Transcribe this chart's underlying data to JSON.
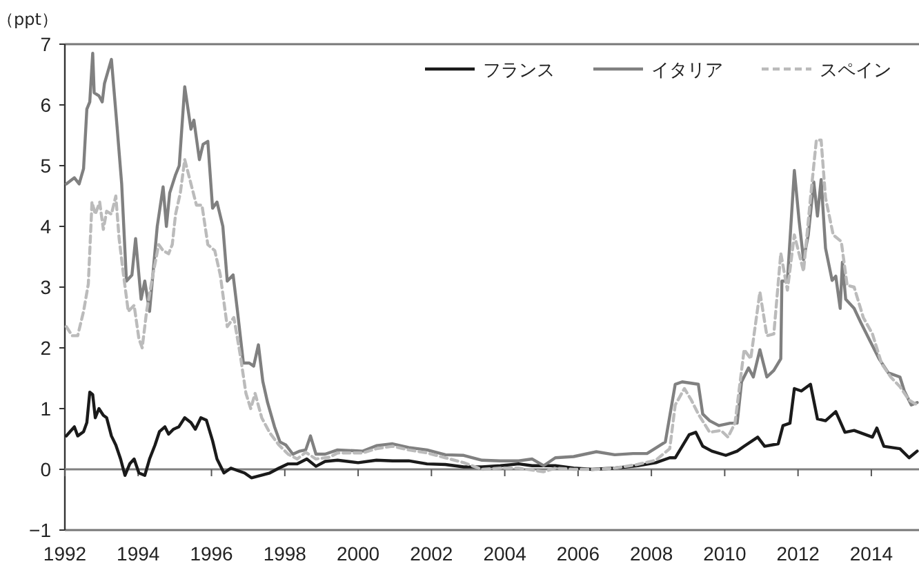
{
  "chart_data": {
    "type": "line",
    "ylabel": "（ppt）",
    "xlim": [
      1992,
      2015.3
    ],
    "ylim": [
      -1,
      7
    ],
    "xticks": [
      1992,
      1994,
      1996,
      1998,
      2000,
      2002,
      2004,
      2006,
      2008,
      2010,
      2012,
      2014
    ],
    "yticks": [
      {
        "value": -1,
        "label": "−1"
      },
      0,
      1,
      2,
      3,
      4,
      5,
      6,
      7
    ],
    "grid": false,
    "legend": "top right",
    "marker": "none",
    "ref_lines": [
      {
        "axis": "y",
        "value": 0,
        "color": "#808080"
      }
    ],
    "series": [
      {
        "name": "フランス",
        "color": "#1a1a1a",
        "line_style": "solid",
        "x": [
          1992.04,
          1992.14,
          1992.26,
          1992.35,
          1992.51,
          1992.6,
          1992.68,
          1992.76,
          1992.83,
          1992.93,
          1993.05,
          1993.14,
          1993.27,
          1993.39,
          1993.52,
          1993.64,
          1993.77,
          1993.89,
          1994.02,
          1994.18,
          1994.31,
          1994.46,
          1994.58,
          1994.73,
          1994.83,
          1994.96,
          1995.11,
          1995.27,
          1995.44,
          1995.56,
          1995.71,
          1995.86,
          1996.03,
          1996.15,
          1996.34,
          1996.53,
          1996.71,
          1996.9,
          1997.09,
          1997.34,
          1997.59,
          1997.84,
          1998.09,
          1998.34,
          1998.6,
          1998.85,
          1999.1,
          1999.44,
          2000.0,
          2000.5,
          2000.94,
          2001.38,
          2001.88,
          2002.38,
          2002.88,
          2003.38,
          2003.88,
          2004.38,
          2004.75,
          2005.06,
          2005.38,
          2005.88,
          2006.38,
          2007.0,
          2007.62,
          2008.12,
          2008.5,
          2008.65,
          2008.84,
          2009.03,
          2009.21,
          2009.4,
          2009.65,
          2010.03,
          2010.34,
          2010.53,
          2010.9,
          2011.09,
          2011.46,
          2011.59,
          2011.78,
          2011.9,
          2012.09,
          2012.34,
          2012.53,
          2012.75,
          2013.03,
          2013.28,
          2013.53,
          2014.03,
          2014.15,
          2014.34,
          2014.78,
          2015.03,
          2015.25
        ],
        "values": [
          0.55,
          0.62,
          0.7,
          0.55,
          0.62,
          0.77,
          1.27,
          1.23,
          0.85,
          1.0,
          0.89,
          0.85,
          0.55,
          0.4,
          0.17,
          -0.1,
          0.09,
          0.17,
          -0.06,
          -0.1,
          0.17,
          0.4,
          0.62,
          0.7,
          0.58,
          0.66,
          0.7,
          0.85,
          0.77,
          0.66,
          0.85,
          0.81,
          0.47,
          0.17,
          -0.06,
          0.02,
          -0.02,
          -0.06,
          -0.14,
          -0.1,
          -0.06,
          0.02,
          0.09,
          0.09,
          0.17,
          0.05,
          0.13,
          0.15,
          0.11,
          0.15,
          0.14,
          0.14,
          0.09,
          0.08,
          0.04,
          0.04,
          0.06,
          0.09,
          0.06,
          0.06,
          0.06,
          0.02,
          0.0,
          0.02,
          0.06,
          0.11,
          0.19,
          0.19,
          0.38,
          0.57,
          0.61,
          0.38,
          0.3,
          0.23,
          0.3,
          0.38,
          0.53,
          0.38,
          0.42,
          0.72,
          0.76,
          1.33,
          1.29,
          1.4,
          0.83,
          0.8,
          0.95,
          0.61,
          0.64,
          0.53,
          0.68,
          0.38,
          0.34,
          0.19,
          0.3
        ]
      },
      {
        "name": "イタリア",
        "color": "#808080",
        "line_style": "solid",
        "x": [
          1992.04,
          1992.26,
          1992.39,
          1992.51,
          1992.6,
          1992.68,
          1992.76,
          1992.8,
          1992.93,
          1993.02,
          1993.08,
          1993.27,
          1993.43,
          1993.55,
          1993.68,
          1993.83,
          1993.93,
          1994.08,
          1994.18,
          1994.31,
          1994.52,
          1994.68,
          1994.77,
          1994.86,
          1995.02,
          1995.12,
          1995.27,
          1995.44,
          1995.52,
          1995.67,
          1995.77,
          1995.9,
          1996.03,
          1996.15,
          1996.31,
          1996.43,
          1996.59,
          1996.71,
          1996.87,
          1997.03,
          1997.15,
          1997.28,
          1997.4,
          1997.53,
          1997.72,
          1997.87,
          1998.03,
          1998.22,
          1998.41,
          1998.57,
          1998.7,
          1998.85,
          1999.1,
          1999.44,
          2000.13,
          2000.5,
          2000.94,
          2001.38,
          2001.88,
          2002.38,
          2002.88,
          2003.38,
          2003.88,
          2004.38,
          2004.75,
          2005.06,
          2005.38,
          2005.88,
          2006.5,
          2007.0,
          2007.5,
          2007.88,
          2008.38,
          2008.65,
          2008.84,
          2009.28,
          2009.4,
          2009.59,
          2009.84,
          2010.15,
          2010.34,
          2010.46,
          2010.65,
          2010.78,
          2010.96,
          2011.15,
          2011.34,
          2011.53,
          2011.56,
          2011.71,
          2011.9,
          2012.03,
          2012.15,
          2012.28,
          2012.43,
          2012.53,
          2012.63,
          2012.75,
          2012.93,
          2013.03,
          2013.15,
          2013.21,
          2013.3,
          2013.53,
          2013.71,
          2013.96,
          2014.21,
          2014.46,
          2014.78,
          2014.9,
          2015.09,
          2015.25
        ],
        "values": [
          4.7,
          4.8,
          4.7,
          4.95,
          5.93,
          6.05,
          6.85,
          6.2,
          6.15,
          6.05,
          6.35,
          6.75,
          5.6,
          4.7,
          3.1,
          3.2,
          3.8,
          2.8,
          3.1,
          2.6,
          4.0,
          4.65,
          4.0,
          4.55,
          4.85,
          5.0,
          6.3,
          5.6,
          5.75,
          5.1,
          5.35,
          5.4,
          4.3,
          4.4,
          4.0,
          3.1,
          3.2,
          2.6,
          1.75,
          1.75,
          1.7,
          2.05,
          1.45,
          1.1,
          0.7,
          0.45,
          0.4,
          0.25,
          0.3,
          0.32,
          0.55,
          0.25,
          0.25,
          0.32,
          0.3,
          0.39,
          0.42,
          0.36,
          0.32,
          0.24,
          0.23,
          0.15,
          0.14,
          0.14,
          0.17,
          0.06,
          0.19,
          0.21,
          0.29,
          0.24,
          0.26,
          0.26,
          0.45,
          1.4,
          1.44,
          1.4,
          0.91,
          0.8,
          0.72,
          0.76,
          0.76,
          1.44,
          1.67,
          1.52,
          1.97,
          1.52,
          1.63,
          1.82,
          3.1,
          3.1,
          4.92,
          4.09,
          3.45,
          3.86,
          4.73,
          4.17,
          4.77,
          3.64,
          3.11,
          3.18,
          2.65,
          3.41,
          2.8,
          2.65,
          2.42,
          2.12,
          1.82,
          1.59,
          1.52,
          1.29,
          1.06,
          1.1
        ]
      },
      {
        "name": "スペイン",
        "color": "#bbbbbb",
        "line_style": "dashed",
        "x": [
          1992.04,
          1992.2,
          1992.35,
          1992.51,
          1992.64,
          1992.74,
          1992.83,
          1992.95,
          1993.05,
          1993.14,
          1993.27,
          1993.39,
          1993.48,
          1993.6,
          1993.73,
          1993.89,
          1994.02,
          1994.11,
          1994.23,
          1994.4,
          1994.56,
          1994.68,
          1994.83,
          1994.93,
          1995.02,
          1995.15,
          1995.27,
          1995.44,
          1995.59,
          1995.74,
          1995.9,
          1996.09,
          1996.24,
          1996.43,
          1996.61,
          1996.78,
          1996.94,
          1997.07,
          1997.19,
          1997.37,
          1997.59,
          1997.84,
          1998.09,
          1998.34,
          1998.57,
          1998.85,
          1999.22,
          1999.44,
          2000.13,
          2000.5,
          2000.94,
          2001.38,
          2001.88,
          2002.38,
          2002.88,
          2003.38,
          2003.88,
          2004.38,
          2005.06,
          2005.38,
          2005.88,
          2006.5,
          2007.0,
          2007.62,
          2008.12,
          2008.5,
          2008.65,
          2008.9,
          2009.09,
          2009.28,
          2009.59,
          2009.9,
          2010.09,
          2010.28,
          2010.53,
          2010.71,
          2010.96,
          2011.15,
          2011.34,
          2011.53,
          2011.71,
          2011.9,
          2012.15,
          2012.34,
          2012.5,
          2012.63,
          2012.75,
          2012.96,
          2013.18,
          2013.34,
          2013.53,
          2013.78,
          2014.03,
          2014.28,
          2014.53,
          2014.78,
          2015.03,
          2015.25
        ],
        "values": [
          2.35,
          2.2,
          2.2,
          2.6,
          3.05,
          4.4,
          4.2,
          4.4,
          3.95,
          4.25,
          4.2,
          4.5,
          3.8,
          3.2,
          2.6,
          2.7,
          2.15,
          2.0,
          2.6,
          3.2,
          3.7,
          3.6,
          3.55,
          3.7,
          4.2,
          4.55,
          5.1,
          4.7,
          4.35,
          4.35,
          3.7,
          3.6,
          3.2,
          2.35,
          2.5,
          1.9,
          1.25,
          1.0,
          1.25,
          0.85,
          0.6,
          0.4,
          0.25,
          0.17,
          0.28,
          0.17,
          0.2,
          0.27,
          0.27,
          0.34,
          0.38,
          0.32,
          0.27,
          0.19,
          0.11,
          0.0,
          0.02,
          0.02,
          -0.04,
          0.02,
          0.0,
          0.0,
          0.02,
          0.08,
          0.15,
          0.34,
          1.06,
          1.33,
          1.14,
          0.91,
          0.61,
          0.64,
          0.53,
          0.76,
          1.97,
          1.82,
          2.92,
          2.2,
          2.23,
          3.56,
          2.95,
          3.86,
          3.26,
          4.47,
          5.42,
          5.42,
          4.47,
          3.86,
          3.75,
          3.03,
          3.0,
          2.5,
          2.23,
          1.74,
          1.52,
          1.36,
          1.14,
          1.06
        ]
      }
    ]
  }
}
